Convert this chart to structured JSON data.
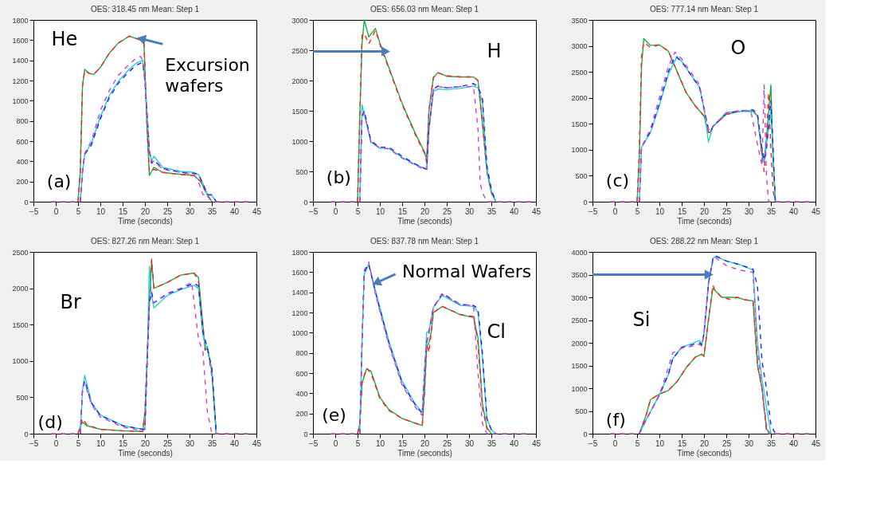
{
  "chart_data": [
    {
      "type": "line",
      "title": "OES: 318.45 nm Mean: Step 1",
      "xlabel": "Time (seconds)",
      "xlim": [
        -5,
        45
      ],
      "xticks": [
        -5,
        0,
        5,
        10,
        15,
        20,
        25,
        30,
        35,
        40,
        45
      ],
      "ylim": [
        0,
        1800
      ],
      "yticks": [
        0,
        200,
        400,
        600,
        800,
        1000,
        1200,
        1400,
        1600,
        1800
      ],
      "grid": false,
      "annotations": [
        "He",
        "(a)",
        {
          "text": "Excursion wafers",
          "x": 19.5,
          "y": 1610
        }
      ],
      "series": [
        {
          "color": "#22aa44",
          "line_style": "solid",
          "x": [
            5,
            5.5,
            6,
            6.5,
            7.5,
            8.5,
            10,
            12,
            14,
            16.5,
            19,
            19.8,
            20.5,
            21,
            21.5,
            22,
            24,
            28,
            31,
            32.5,
            34,
            35
          ],
          "values": [
            0,
            300,
            1150,
            1310,
            1270,
            1260,
            1330,
            1470,
            1570,
            1640,
            1600,
            1560,
            700,
            260,
            300,
            340,
            290,
            270,
            260,
            200,
            70,
            0
          ]
        },
        {
          "color": "#ff2020",
          "line_style": "dashed",
          "x": [
            5,
            5.5,
            6,
            6.5,
            7.5,
            8.5,
            10,
            12,
            14,
            16.5,
            19,
            19.8,
            20.5,
            21,
            21.5,
            22,
            24,
            28,
            31,
            32.5,
            34,
            35
          ],
          "values": [
            0,
            300,
            1150,
            1300,
            1270,
            1260,
            1330,
            1470,
            1570,
            1640,
            1600,
            1560,
            700,
            300,
            290,
            320,
            290,
            270,
            260,
            200,
            60,
            0
          ]
        },
        {
          "color": "#20d0d0",
          "line_style": "solid",
          "x": [
            5.5,
            6,
            6.5,
            8,
            10,
            12,
            14,
            16,
            18,
            19.5,
            20,
            21,
            21.5,
            22,
            24,
            28,
            31,
            32,
            33,
            34,
            35,
            36
          ],
          "values": [
            0,
            300,
            470,
            580,
            840,
            1050,
            1190,
            1290,
            1370,
            1400,
            1200,
            500,
            400,
            450,
            340,
            300,
            290,
            270,
            180,
            70,
            60,
            0
          ]
        },
        {
          "color": "#2020ff",
          "line_style": "dashed",
          "x": [
            5.5,
            6,
            6.5,
            8,
            10,
            12,
            14,
            16,
            18,
            19.5,
            20,
            21,
            21.5,
            22,
            24,
            28,
            31,
            32,
            33,
            34,
            35,
            36
          ],
          "values": [
            0,
            300,
            470,
            560,
            820,
            1030,
            1170,
            1270,
            1350,
            1380,
            1200,
            500,
            380,
            410,
            330,
            290,
            280,
            270,
            180,
            70,
            70,
            0
          ]
        },
        {
          "color": "#d040d0",
          "line_style": "dashed",
          "x": [
            -1,
            5.5,
            6,
            6.5,
            8,
            10,
            12,
            14,
            16,
            18,
            19,
            19.5,
            20,
            21,
            21.5,
            22,
            24,
            28,
            31,
            32,
            33,
            34,
            35,
            44
          ],
          "values": [
            0,
            0,
            300,
            480,
            600,
            900,
            1100,
            1250,
            1340,
            1420,
            1440,
            1400,
            1200,
            500,
            400,
            400,
            320,
            290,
            270,
            200,
            70,
            70,
            0,
            0
          ]
        }
      ]
    },
    {
      "type": "line",
      "title": "OES: 656.03 nm Mean: Step 1",
      "xlabel": "Time (seconds)",
      "xlim": [
        -5,
        45
      ],
      "xticks": [
        -5,
        0,
        5,
        10,
        15,
        20,
        25,
        30,
        35,
        40,
        45
      ],
      "ylim": [
        0,
        3000
      ],
      "yticks": [
        0,
        500,
        1000,
        1500,
        2000,
        2500,
        3000
      ],
      "grid": false,
      "annotations": [
        "H",
        "(b)"
      ],
      "series": [
        {
          "color": "#22aa44",
          "line_style": "solid",
          "x": [
            5,
            5.5,
            6,
            6.5,
            7.5,
            9,
            10,
            12,
            15,
            18,
            20,
            20.5,
            21,
            22,
            23,
            25,
            28,
            31,
            32,
            33,
            34,
            35,
            36
          ],
          "values": [
            0,
            1400,
            2600,
            3000,
            2720,
            2860,
            2620,
            2220,
            1620,
            1120,
            820,
            700,
            1500,
            2050,
            2130,
            2070,
            2060,
            2060,
            2000,
            1300,
            500,
            150,
            0
          ]
        },
        {
          "color": "#ff2020",
          "line_style": "dashed",
          "x": [
            5,
            5.5,
            6,
            6.5,
            7.5,
            9,
            10,
            12,
            15,
            18,
            20,
            20.5,
            21,
            22,
            23,
            25,
            28,
            31,
            32,
            33,
            34,
            35,
            36
          ],
          "values": [
            0,
            1400,
            2750,
            2780,
            2600,
            2830,
            2600,
            2200,
            1600,
            1100,
            800,
            650,
            1500,
            2050,
            2130,
            2080,
            2060,
            2060,
            2000,
            1300,
            500,
            150,
            0
          ]
        },
        {
          "color": "#20d0d0",
          "line_style": "solid",
          "x": [
            5.5,
            6,
            6.5,
            8,
            10,
            12,
            15,
            18,
            20,
            20.5,
            21,
            22,
            23,
            25,
            28,
            31,
            32,
            33,
            34,
            35,
            36
          ],
          "values": [
            0,
            1600,
            1450,
            980,
            880,
            880,
            730,
            610,
            550,
            530,
            1200,
            1820,
            1860,
            1850,
            1870,
            1910,
            1880,
            1650,
            550,
            180,
            0
          ]
        },
        {
          "color": "#2020ff",
          "line_style": "dashed",
          "x": [
            5.5,
            6,
            6.5,
            8,
            10,
            12,
            15,
            18,
            20,
            20.5,
            21,
            22,
            23,
            25,
            28,
            31,
            32,
            33,
            34,
            35,
            36
          ],
          "values": [
            0,
            1400,
            1500,
            1000,
            900,
            900,
            750,
            620,
            550,
            540,
            1200,
            1850,
            1910,
            1880,
            1900,
            1950,
            1900,
            1700,
            600,
            200,
            0
          ]
        },
        {
          "color": "#d040d0",
          "line_style": "dashed",
          "x": [
            -1,
            5.5,
            6,
            6.5,
            8,
            10,
            12,
            15,
            18,
            20,
            20.5,
            21,
            22,
            23,
            25,
            28,
            31,
            32,
            32.5,
            33,
            34,
            44
          ],
          "values": [
            0,
            0,
            1400,
            1460,
            980,
            890,
            870,
            720,
            600,
            530,
            540,
            1200,
            1850,
            1900,
            1880,
            1900,
            1900,
            1200,
            300,
            150,
            0,
            0
          ]
        }
      ]
    },
    {
      "type": "line",
      "title": "OES: 777.14 nm Mean: Step 1",
      "xlabel": "Time (seconds)",
      "xlim": [
        -5,
        45
      ],
      "xticks": [
        -5,
        0,
        5,
        10,
        15,
        20,
        25,
        30,
        35,
        40,
        45
      ],
      "ylim": [
        0,
        3500
      ],
      "yticks": [
        0,
        500,
        1000,
        1500,
        2000,
        2500,
        3000,
        3500
      ],
      "grid": false,
      "annotations": [
        "O",
        "(c)"
      ],
      "series": [
        {
          "color": "#22aa44",
          "line_style": "solid",
          "x": [
            5,
            5.5,
            6,
            6.5,
            8,
            10,
            12,
            14,
            16,
            18,
            20,
            21,
            21.5,
            22,
            25,
            28,
            31,
            32,
            33,
            33.5,
            34,
            35,
            35.5,
            36
          ],
          "values": [
            0,
            800,
            2600,
            3140,
            3010,
            3020,
            2900,
            2500,
            2100,
            1850,
            1650,
            1330,
            1350,
            1450,
            1680,
            1740,
            1750,
            1650,
            900,
            800,
            1200,
            2250,
            800,
            0
          ]
        },
        {
          "color": "#ff2020",
          "line_style": "dashed",
          "x": [
            5,
            5.5,
            6,
            6.5,
            8,
            10,
            12,
            14,
            16,
            18,
            20,
            21,
            21.5,
            22,
            25,
            28,
            31,
            32,
            33,
            33.5,
            34,
            34.5,
            35,
            35.5,
            36
          ],
          "values": [
            0,
            1000,
            2800,
            3070,
            2970,
            3020,
            2900,
            2500,
            2100,
            1850,
            1650,
            1330,
            1350,
            1450,
            1680,
            1740,
            1750,
            1650,
            900,
            580,
            1200,
            2100,
            1000,
            200,
            0
          ]
        },
        {
          "color": "#20d0d0",
          "line_style": "solid",
          "x": [
            5.5,
            6,
            8,
            10,
            12,
            14,
            15,
            17,
            19,
            20,
            21,
            21.5,
            22,
            25,
            28,
            31,
            32,
            33,
            33.5,
            34,
            35,
            35.5,
            36
          ],
          "values": [
            0,
            1050,
            1330,
            1850,
            2450,
            2800,
            2700,
            2450,
            2200,
            1800,
            1150,
            1300,
            1450,
            1720,
            1740,
            1730,
            1650,
            1000,
            750,
            1100,
            1750,
            900,
            0
          ]
        },
        {
          "color": "#2020ff",
          "line_style": "dashed",
          "x": [
            5.5,
            6,
            8,
            10,
            12,
            13.5,
            15,
            17,
            19,
            20,
            21,
            21.5,
            22,
            25,
            28,
            31,
            32,
            33,
            33.5,
            34,
            35,
            35.5,
            36
          ],
          "values": [
            0,
            1050,
            1350,
            1900,
            2500,
            2800,
            2700,
            2450,
            2200,
            1800,
            1400,
            1350,
            1450,
            1700,
            1750,
            1770,
            1700,
            1000,
            800,
            1000,
            1950,
            1000,
            0
          ]
        },
        {
          "color": "#d040d0",
          "line_style": "dashed",
          "x": [
            -1,
            5.5,
            6,
            8,
            10,
            12,
            13.5,
            15,
            17,
            19,
            20,
            21,
            21.5,
            22,
            25,
            28,
            30.5,
            32,
            33,
            33.5,
            34,
            34.5,
            44
          ],
          "values": [
            0,
            0,
            1050,
            1400,
            2000,
            2600,
            2880,
            2750,
            2500,
            2250,
            1800,
            1400,
            1350,
            1450,
            1700,
            1760,
            1750,
            1100,
            700,
            2250,
            500,
            0,
            0
          ]
        }
      ]
    },
    {
      "type": "line",
      "title": "OES: 827.26 nm Mean: Step 1",
      "xlabel": "Time (seconds)",
      "xlim": [
        -5,
        45
      ],
      "xticks": [
        -5,
        0,
        5,
        10,
        15,
        20,
        25,
        30,
        35,
        40,
        45
      ],
      "ylim": [
        0,
        2500
      ],
      "yticks": [
        0,
        500,
        1000,
        1500,
        2000,
        2500
      ],
      "grid": false,
      "annotations": [
        "Br",
        "(d)"
      ],
      "series": [
        {
          "color": "#22aa44",
          "line_style": "solid",
          "x": [
            5,
            5.5,
            6,
            7,
            10,
            15,
            19.5,
            20,
            21,
            21.5,
            22,
            25,
            28,
            31,
            32,
            33,
            33.5,
            34,
            35,
            36
          ],
          "values": [
            0,
            100,
            160,
            110,
            60,
            40,
            30,
            300,
            1800,
            2380,
            2000,
            2080,
            2180,
            2210,
            2150,
            1500,
            1150,
            1200,
            850,
            0
          ]
        },
        {
          "color": "#ff2020",
          "line_style": "dashed",
          "x": [
            5,
            5.5,
            6,
            7,
            10,
            15,
            19.5,
            20,
            21,
            21.5,
            22,
            25,
            28,
            31,
            32,
            33,
            33.5,
            34,
            35,
            36
          ],
          "values": [
            0,
            100,
            210,
            120,
            60,
            40,
            30,
            300,
            1800,
            2400,
            2000,
            2080,
            2180,
            2210,
            2100,
            1500,
            1150,
            1180,
            800,
            0
          ]
        },
        {
          "color": "#20d0d0",
          "line_style": "solid",
          "x": [
            5.5,
            6,
            6.5,
            8,
            10,
            15,
            19.5,
            20,
            20.5,
            21,
            21.5,
            22,
            25,
            28,
            31,
            32,
            33,
            34,
            35,
            36
          ],
          "values": [
            0,
            600,
            800,
            430,
            260,
            110,
            60,
            60,
            1000,
            2300,
            1900,
            1730,
            1900,
            1980,
            2040,
            2000,
            1350,
            1150,
            900,
            0
          ]
        },
        {
          "color": "#2020ff",
          "line_style": "dashed",
          "x": [
            5.5,
            6,
            6.5,
            8,
            10,
            15,
            19.5,
            20,
            20.5,
            21,
            21.5,
            22,
            25,
            28,
            31,
            32,
            33,
            34,
            35,
            36
          ],
          "values": [
            0,
            600,
            730,
            420,
            250,
            110,
            60,
            60,
            1000,
            1800,
            1950,
            1800,
            1920,
            1990,
            2070,
            2030,
            1400,
            1180,
            900,
            0
          ]
        },
        {
          "color": "#d040d0",
          "line_style": "dashed",
          "x": [
            -1,
            5.5,
            6,
            6.5,
            8,
            10,
            15,
            19.5,
            20,
            20.5,
            21,
            21.5,
            22,
            25,
            28,
            30.5,
            32,
            33,
            34,
            35,
            44
          ],
          "values": [
            0,
            0,
            600,
            700,
            400,
            230,
            90,
            40,
            60,
            1000,
            1800,
            1900,
            1800,
            1930,
            2000,
            2080,
            1300,
            1130,
            300,
            0,
            0
          ]
        }
      ]
    },
    {
      "type": "line",
      "title": "OES: 837.78 nm Mean: Step 1",
      "xlabel": "Time (seconds)",
      "xlim": [
        -5,
        45
      ],
      "xticks": [
        -5,
        0,
        5,
        10,
        15,
        20,
        25,
        30,
        35,
        40,
        45
      ],
      "ylim": [
        0,
        1800
      ],
      "yticks": [
        0,
        200,
        400,
        600,
        800,
        1000,
        1200,
        1400,
        1600,
        1800
      ],
      "grid": false,
      "annotations": [
        "Cl",
        "(e)",
        {
          "text": "Normal Wafers",
          "x": 9.5,
          "y": 1500
        }
      ],
      "series": [
        {
          "color": "#22aa44",
          "line_style": "solid",
          "x": [
            5,
            5.5,
            6,
            7,
            8,
            10,
            12,
            15,
            19.5,
            20,
            20.5,
            21,
            21.5,
            22,
            24,
            28,
            31,
            32,
            33,
            34,
            35
          ],
          "values": [
            0,
            100,
            500,
            640,
            620,
            360,
            240,
            150,
            80,
            400,
            850,
            900,
            1000,
            1200,
            1260,
            1180,
            1150,
            950,
            300,
            60,
            0
          ]
        },
        {
          "color": "#ff2020",
          "line_style": "dashed",
          "x": [
            5,
            5.5,
            6,
            7,
            8,
            10,
            12,
            15,
            19.5,
            20,
            20.5,
            21,
            21.5,
            22,
            24,
            28,
            31,
            32,
            33,
            34,
            35
          ],
          "values": [
            0,
            100,
            500,
            650,
            600,
            350,
            230,
            150,
            80,
            400,
            900,
            800,
            1000,
            1200,
            1260,
            1180,
            1160,
            900,
            250,
            50,
            0
          ]
        },
        {
          "color": "#20d0d0",
          "line_style": "solid",
          "x": [
            5.5,
            6,
            6.5,
            7.5,
            9,
            12,
            15,
            18,
            19.5,
            20,
            20.5,
            21,
            22,
            24,
            28,
            31,
            32,
            33,
            34,
            35,
            36
          ],
          "values": [
            0,
            900,
            1580,
            1680,
            1420,
            920,
            520,
            290,
            210,
            600,
            1000,
            1020,
            1250,
            1370,
            1270,
            1260,
            1200,
            750,
            150,
            40,
            0
          ]
        },
        {
          "color": "#2020ff",
          "line_style": "dashed",
          "x": [
            5.5,
            6,
            6.5,
            7.5,
            9,
            12,
            15,
            18,
            19.5,
            20,
            20.5,
            21,
            22,
            24,
            28,
            31,
            32,
            33,
            34,
            35,
            36
          ],
          "values": [
            0,
            900,
            1600,
            1680,
            1400,
            900,
            500,
            280,
            200,
            600,
            900,
            1000,
            1250,
            1390,
            1280,
            1270,
            1240,
            800,
            150,
            40,
            0
          ]
        },
        {
          "color": "#d040d0",
          "line_style": "dashed",
          "x": [
            -1,
            5.5,
            6,
            6.5,
            7.5,
            9,
            12,
            15,
            18,
            19.5,
            20,
            20.5,
            21,
            22,
            24,
            28,
            31,
            32,
            33,
            34,
            44
          ],
          "values": [
            0,
            0,
            900,
            1620,
            1700,
            1380,
            880,
            480,
            260,
            180,
            600,
            900,
            1000,
            1250,
            1380,
            1280,
            1270,
            600,
            100,
            0,
            0
          ]
        }
      ]
    },
    {
      "type": "line",
      "title": "OES: 288.22 nm Mean: Step 1",
      "xlabel": "Time (seconds)",
      "xlim": [
        -5,
        45
      ],
      "xticks": [
        -5,
        0,
        5,
        10,
        15,
        20,
        25,
        30,
        35,
        40,
        45
      ],
      "ylim": [
        0,
        4000
      ],
      "yticks": [
        0,
        500,
        1000,
        1500,
        2000,
        2500,
        3000,
        3500,
        4000
      ],
      "grid": false,
      "annotations": [
        "Si",
        "(f)"
      ],
      "series": [
        {
          "color": "#22aa44",
          "line_style": "solid",
          "x": [
            5.5,
            7,
            8,
            10,
            12,
            14,
            16,
            18,
            19.5,
            20,
            21,
            22,
            22.5,
            24,
            26,
            27.5,
            29,
            31,
            32,
            33,
            34,
            35
          ],
          "values": [
            0,
            400,
            750,
            870,
            950,
            1150,
            1450,
            1680,
            1750,
            1700,
            2500,
            3200,
            3150,
            3000,
            3000,
            3000,
            2950,
            2920,
            1500,
            1000,
            100,
            0
          ]
        },
        {
          "color": "#ff2020",
          "line_style": "dashed",
          "x": [
            5.5,
            7,
            8,
            10,
            12,
            14,
            16,
            18,
            19.5,
            20,
            21,
            22,
            22.5,
            24,
            26,
            27.5,
            29,
            31,
            32,
            33,
            34,
            35
          ],
          "values": [
            0,
            400,
            750,
            870,
            950,
            1150,
            1450,
            1680,
            1750,
            1700,
            2500,
            3270,
            3150,
            3000,
            2950,
            3000,
            2950,
            2920,
            1500,
            1000,
            100,
            0
          ]
        },
        {
          "color": "#20d0d0",
          "line_style": "solid",
          "x": [
            5.5,
            7,
            10,
            12,
            13,
            15,
            17,
            19,
            19.5,
            20,
            21,
            22,
            22.5,
            25,
            28,
            31,
            32,
            33,
            34,
            35
          ],
          "values": [
            0,
            300,
            850,
            1300,
            1650,
            1900,
            1970,
            2050,
            1970,
            2200,
            3300,
            3850,
            3900,
            3800,
            3720,
            3600,
            2000,
            1200,
            600,
            0
          ]
        },
        {
          "color": "#2020ff",
          "line_style": "dashed",
          "x": [
            5.5,
            7,
            10,
            12,
            13,
            15,
            17,
            19,
            19.5,
            20,
            21,
            22,
            22.5,
            25,
            28,
            31,
            32,
            33,
            34,
            35,
            36
          ],
          "values": [
            0,
            300,
            850,
            1300,
            1650,
            1900,
            1950,
            2000,
            1950,
            2200,
            3300,
            3850,
            3920,
            3800,
            3720,
            3620,
            3250,
            1600,
            1000,
            200,
            0
          ]
        },
        {
          "color": "#d040d0",
          "line_style": "dashed",
          "x": [
            -1,
            5.5,
            7,
            10,
            12,
            13,
            15,
            17,
            19,
            19.5,
            20,
            21,
            22,
            22.5,
            25,
            28,
            31,
            32,
            33,
            34,
            34.5,
            44
          ],
          "values": [
            0,
            0,
            300,
            850,
            1450,
            1780,
            1880,
            1920,
            1970,
            1920,
            2200,
            3300,
            3800,
            3880,
            3700,
            3600,
            3550,
            1800,
            1000,
            200,
            0,
            0
          ]
        }
      ]
    }
  ]
}
